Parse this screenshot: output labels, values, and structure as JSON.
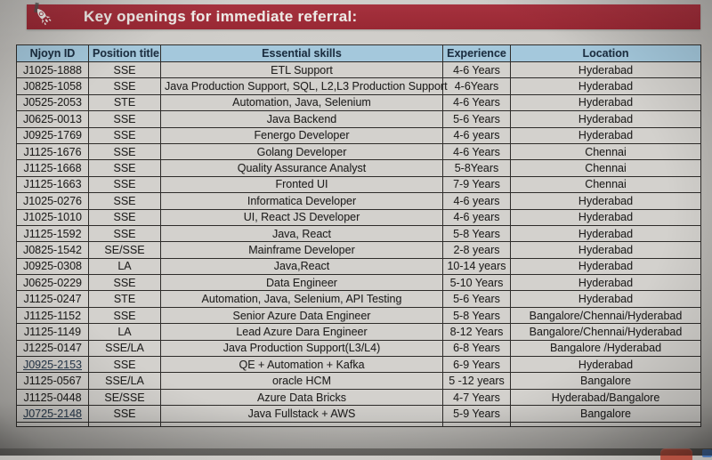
{
  "banner": {
    "title": "Key openings for immediate referral:",
    "icon": "rocket-icon",
    "bg_color": "#9b2531",
    "text_color": "#ece8e4"
  },
  "table": {
    "header_bg": "#a4c8dc",
    "headers": [
      "Njoyn ID",
      "Position title",
      "Essential skills",
      "Experience",
      "Location"
    ],
    "rows": [
      {
        "id": "J1025-1888",
        "position": "SSE",
        "skills": "ETL Support",
        "experience": "4-6 Years",
        "location": "Hyderabad",
        "link": false
      },
      {
        "id": "J0825-1058",
        "position": "SSE",
        "skills": "Java Production Support, SQL, L2,L3 Production Support",
        "experience": "4-6Years",
        "location": "Hyderabad",
        "link": false
      },
      {
        "id": "J0525-2053",
        "position": "STE",
        "skills": "Automation, Java, Selenium",
        "experience": "4-6 Years",
        "location": "Hyderabad",
        "link": false
      },
      {
        "id": "J0625-0013",
        "position": "SSE",
        "skills": "Java Backend",
        "experience": "5-6 Years",
        "location": "Hyderabad",
        "link": false
      },
      {
        "id": "J0925-1769",
        "position": "SSE",
        "skills": "Fenergo Developer",
        "experience": "4-6 years",
        "location": "Hyderabad",
        "link": false
      },
      {
        "id": "J1125-1676",
        "position": "SSE",
        "skills": "Golang Developer",
        "experience": "4-6 Years",
        "location": "Chennai",
        "link": false
      },
      {
        "id": "J1125-1668",
        "position": "SSE",
        "skills": "Quality Assurance Analyst",
        "experience": "5-8Years",
        "location": "Chennai",
        "link": false
      },
      {
        "id": "J1125-1663",
        "position": "SSE",
        "skills": "Fronted UI",
        "experience": "7-9 Years",
        "location": "Chennai",
        "link": false
      },
      {
        "id": "J1025-0276",
        "position": "SSE",
        "skills": "Informatica Developer",
        "experience": "4-6 years",
        "location": "Hyderabad",
        "link": false
      },
      {
        "id": "J1025-1010",
        "position": "SSE",
        "skills": "UI, React JS Developer",
        "experience": "4-6 years",
        "location": "Hyderabad",
        "link": false
      },
      {
        "id": "J1125-1592",
        "position": "SSE",
        "skills": "Java, React",
        "experience": "5-8 Years",
        "location": "Hyderabad",
        "link": false
      },
      {
        "id": "J0825-1542",
        "position": "SE/SSE",
        "skills": "Mainframe Developer",
        "experience": "2-8 years",
        "location": "Hyderabad",
        "link": false
      },
      {
        "id": "J0925-0308",
        "position": "LA",
        "skills": "Java,React",
        "experience": "10-14 years",
        "location": "Hyderabad",
        "link": false
      },
      {
        "id": "J0625-0229",
        "position": "SSE",
        "skills": "Data Engineer",
        "experience": "5-10 Years",
        "location": "Hyderabad",
        "link": false
      },
      {
        "id": "J1125-0247",
        "position": "STE",
        "skills": "Automation, Java, Selenium, API Testing",
        "experience": "5-6 Years",
        "location": "Hyderabad",
        "link": false
      },
      {
        "id": "J1125-1152",
        "position": "SSE",
        "skills": "Senior Azure Data Engineer",
        "experience": "5-8 Years",
        "location": "Bangalore/Chennai/Hyderabad",
        "link": false
      },
      {
        "id": "J1125-1149",
        "position": "LA",
        "skills": "Lead Azure Dara Engineer",
        "experience": "8-12 Years",
        "location": "Bangalore/Chennai/Hyderabad",
        "link": false
      },
      {
        "id": "J1225-0147",
        "position": "SSE/LA",
        "skills": "Java Production Support(L3/L4)",
        "experience": "6-8 Years",
        "location": "Bangalore /Hyderabad",
        "link": false
      },
      {
        "id": "J0925-2153",
        "position": "SSE",
        "skills": "QE + Automation + Kafka",
        "experience": "6-9 Years",
        "location": "Hyderabad",
        "link": true
      },
      {
        "id": "J1125-0567",
        "position": "SSE/LA",
        "skills": "oracle HCM",
        "experience": "5 -12 years",
        "location": "Bangalore",
        "link": false
      },
      {
        "id": "J1125-0448",
        "position": "SE/SSE",
        "skills": "Azure Data Bricks",
        "experience": "4-7 Years",
        "location": "Hyderabad/Bangalore",
        "link": false
      },
      {
        "id": "J0725-2148",
        "position": "SSE",
        "skills": "Java Fullstack + AWS",
        "experience": "5-9 Years",
        "location": "Bangalore",
        "link": true
      }
    ]
  },
  "colors": {
    "link": "#2e3f52",
    "border": "#2e2c2a",
    "cell_bg": "#d3d1cd"
  }
}
